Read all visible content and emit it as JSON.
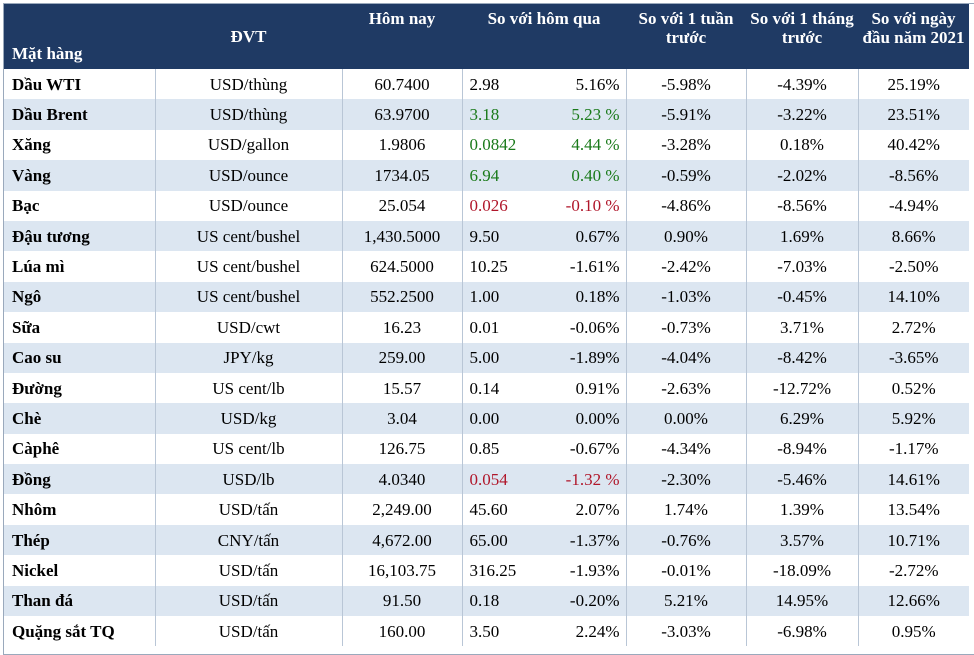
{
  "table": {
    "headers": {
      "item": "Mặt hàng",
      "unit": "ĐVT",
      "today": "Hôm nay",
      "vs_yesterday": "So với hôm qua",
      "vs_week": "So với 1 tuần trước",
      "vs_month": "So với 1 tháng trước",
      "vs_ytd": "So với ngày đầu năm 2021"
    },
    "rows": [
      {
        "name": "Dầu WTI",
        "unit": "USD/thùng",
        "today": "60.7400",
        "chg": "2.98",
        "pct": "5.16%",
        "week": "-5.98%",
        "month": "-4.39%",
        "ytd": "25.19%",
        "tone": ""
      },
      {
        "name": "Dầu Brent",
        "unit": "USD/thùng",
        "today": "63.9700",
        "chg": "3.18",
        "pct": "5.23 %",
        "week": "-5.91%",
        "month": "-3.22%",
        "ytd": "23.51%",
        "tone": "green"
      },
      {
        "name": "Xăng",
        "unit": "USD/gallon",
        "today": "1.9806",
        "chg": "0.0842",
        "pct": "4.44 %",
        "week": "-3.28%",
        "month": "0.18%",
        "ytd": "40.42%",
        "tone": "green"
      },
      {
        "name": "Vàng",
        "unit": "USD/ounce",
        "today": "1734.05",
        "chg": "6.94",
        "pct": "0.40 %",
        "week": "-0.59%",
        "month": "-2.02%",
        "ytd": "-8.56%",
        "tone": "green"
      },
      {
        "name": "Bạc",
        "unit": "USD/ounce",
        "today": "25.054",
        "chg": "0.026",
        "pct": "-0.10 %",
        "week": "-4.86%",
        "month": "-8.56%",
        "ytd": "-4.94%",
        "tone": "red"
      },
      {
        "name": "Đậu tương",
        "unit": "US cent/bushel",
        "today": "1,430.5000",
        "chg": "9.50",
        "pct": "0.67%",
        "week": "0.90%",
        "month": "1.69%",
        "ytd": "8.66%",
        "tone": ""
      },
      {
        "name": "Lúa mì",
        "unit": "US cent/bushel",
        "today": "624.5000",
        "chg": "10.25",
        "pct": "-1.61%",
        "week": "-2.42%",
        "month": "-7.03%",
        "ytd": "-2.50%",
        "tone": ""
      },
      {
        "name": "Ngô",
        "unit": "US cent/bushel",
        "today": "552.2500",
        "chg": "1.00",
        "pct": "0.18%",
        "week": "-1.03%",
        "month": "-0.45%",
        "ytd": "14.10%",
        "tone": ""
      },
      {
        "name": "Sữa",
        "unit": "USD/cwt",
        "today": "16.23",
        "chg": "0.01",
        "pct": "-0.06%",
        "week": "-0.73%",
        "month": "3.71%",
        "ytd": "2.72%",
        "tone": ""
      },
      {
        "name": "Cao su",
        "unit": "JPY/kg",
        "today": "259.00",
        "chg": "5.00",
        "pct": "-1.89%",
        "week": "-4.04%",
        "month": "-8.42%",
        "ytd": "-3.65%",
        "tone": ""
      },
      {
        "name": "Đường",
        "unit": "US cent/lb",
        "today": "15.57",
        "chg": "0.14",
        "pct": "0.91%",
        "week": "-2.63%",
        "month": "-12.72%",
        "ytd": "0.52%",
        "tone": ""
      },
      {
        "name": "Chè",
        "unit": "USD/kg",
        "today": "3.04",
        "chg": "0.00",
        "pct": "0.00%",
        "week": "0.00%",
        "month": "6.29%",
        "ytd": "5.92%",
        "tone": ""
      },
      {
        "name": "Càphê",
        "unit": "US cent/lb",
        "today": "126.75",
        "chg": "0.85",
        "pct": "-0.67%",
        "week": "-4.34%",
        "month": "-8.94%",
        "ytd": "-1.17%",
        "tone": ""
      },
      {
        "name": "Đồng",
        "unit": "USD/lb",
        "today": "4.0340",
        "chg": "0.054",
        "pct": "-1.32 %",
        "week": "-2.30%",
        "month": "-5.46%",
        "ytd": "14.61%",
        "tone": "red"
      },
      {
        "name": "Nhôm",
        "unit": "USD/tấn",
        "today": "2,249.00",
        "chg": "45.60",
        "pct": "2.07%",
        "week": "1.74%",
        "month": "1.39%",
        "ytd": "13.54%",
        "tone": ""
      },
      {
        "name": "Thép",
        "unit": "CNY/tấn",
        "today": "4,672.00",
        "chg": "65.00",
        "pct": "-1.37%",
        "week": "-0.76%",
        "month": "3.57%",
        "ytd": "10.71%",
        "tone": ""
      },
      {
        "name": "Nickel",
        "unit": "USD/tấn",
        "today": "16,103.75",
        "chg": "316.25",
        "pct": "-1.93%",
        "week": "-0.01%",
        "month": "-18.09%",
        "ytd": "-2.72%",
        "tone": ""
      },
      {
        "name": "Than đá",
        "unit": "USD/tấn",
        "today": "91.50",
        "chg": "0.18",
        "pct": "-0.20%",
        "week": "5.21%",
        "month": "14.95%",
        "ytd": "12.66%",
        "tone": ""
      },
      {
        "name": "Quặng sắt TQ",
        "unit": "USD/tấn",
        "today": "160.00",
        "chg": "3.50",
        "pct": "2.24%",
        "week": "-3.03%",
        "month": "-6.98%",
        "ytd": "0.95%",
        "tone": ""
      }
    ]
  },
  "colors": {
    "header_bg": "#1f3a64",
    "header_text": "#ffffff",
    "alt_row_bg": "#dce6f1",
    "gain": "#1a7a1a",
    "loss": "#b0162a"
  }
}
